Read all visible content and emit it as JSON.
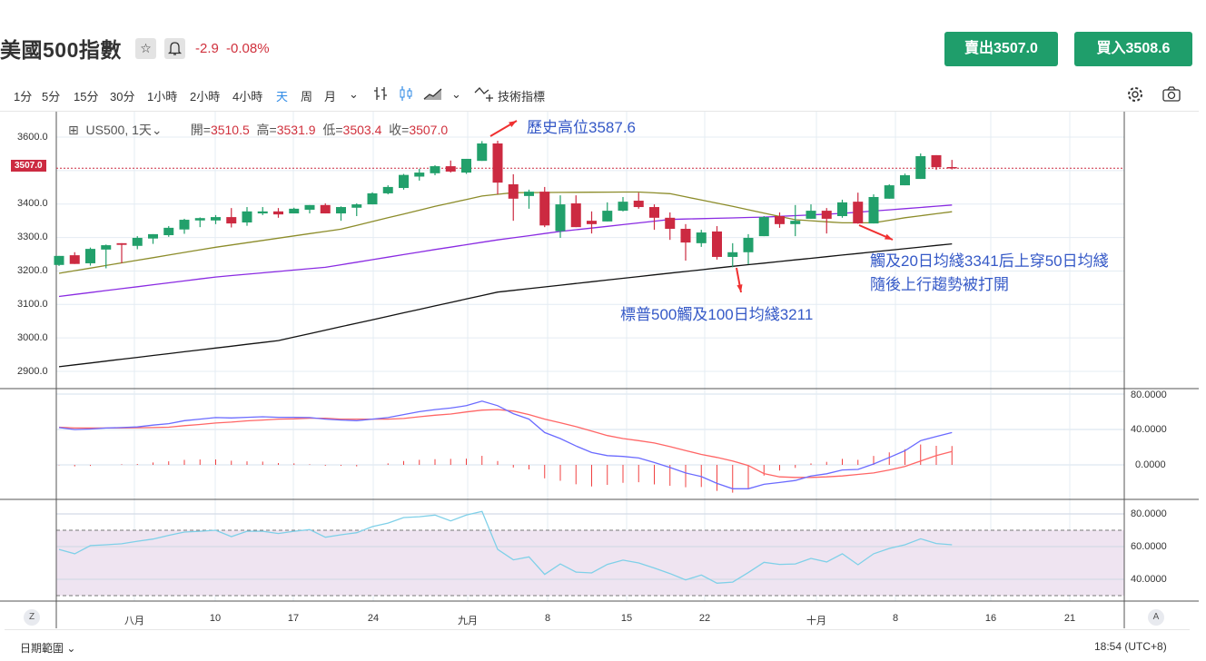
{
  "header": {
    "title": "美國500指數",
    "favorite_icon": "☆",
    "alert_icon": "🔔",
    "change": "-2.9",
    "change_pct": "-0.08%",
    "sell_label": "賣出3507.0",
    "buy_label": "買入3508.6",
    "sell_color": "#1f9e6b",
    "buy_color": "#1f9e6b"
  },
  "toolbar": {
    "intervals": [
      "1分",
      "5分",
      "15分",
      "30分",
      "1小時",
      "2小時",
      "4小時",
      "天",
      "周",
      "月"
    ],
    "active_interval": "天",
    "more": "⌄",
    "chart_type_more": "⌄",
    "indicators_label": "技術指標"
  },
  "legend": {
    "symbol": "US500, 1天",
    "open_label": "開=",
    "open": "3510.5",
    "high_label": "高=",
    "high": "3531.9",
    "low_label": "低=",
    "low": "3503.4",
    "close_label": "收=",
    "close": "3507.0"
  },
  "annotations": {
    "high": "歷史高位3587.6",
    "ma100": "標普500觸及100日均綫3211",
    "ma20_line1": "觸及20日均綫3341后上穿50日均綫",
    "ma20_line2": "隨後上行趨勢被打開"
  },
  "price_axis": {
    "labels": [
      "3600.0",
      "3500.0",
      "3400.0",
      "3300.0",
      "3200.0",
      "3100.0",
      "3000.0",
      "2900.0"
    ],
    "current": "3507.0"
  },
  "macd_axis": {
    "labels": [
      "80.0000",
      "40.0000",
      "0.0000"
    ]
  },
  "rsi_axis": {
    "labels": [
      "80.0000",
      "60.0000",
      "40.0000"
    ]
  },
  "time_axis": {
    "labels": [
      "八月",
      "10",
      "17",
      "24",
      "九月",
      "8",
      "15",
      "22",
      "十月",
      "8",
      "16",
      "21"
    ],
    "left_btn": "Z",
    "right_btn": "A"
  },
  "footer": {
    "range_label": "日期範圍 ⌄",
    "clock": "18:54 (UTC+8)"
  },
  "colors": {
    "up": "#22a06b",
    "down": "#cc2a41",
    "ma20": "#8c8c2a",
    "ma50": "#8a2be2",
    "ma100": "#111111",
    "dif": "#6b6bff",
    "dea": "#ff6666",
    "rsi": "#7fd0e8",
    "note": "#3559c7"
  },
  "chart_data": {
    "type": "candlestick",
    "symbol": "US500",
    "timeframe": "1天",
    "ylim": [
      2880,
      3640
    ],
    "ohlc": [
      [
        3218,
        3245,
        3215,
        3245
      ],
      [
        3247,
        3256,
        3221,
        3221
      ],
      [
        3223,
        3270,
        3216,
        3266
      ],
      [
        3264,
        3279,
        3208,
        3277
      ],
      [
        3283,
        3283,
        3223,
        3278
      ],
      [
        3275,
        3304,
        3265,
        3299
      ],
      [
        3297,
        3310,
        3281,
        3310
      ],
      [
        3307,
        3334,
        3302,
        3329
      ],
      [
        3324,
        3356,
        3311,
        3353
      ],
      [
        3351,
        3360,
        3331,
        3358
      ],
      [
        3351,
        3367,
        3340,
        3361
      ],
      [
        3361,
        3388,
        3330,
        3342
      ],
      [
        3345,
        3391,
        3335,
        3378
      ],
      [
        3372,
        3391,
        3367,
        3378
      ],
      [
        3378,
        3388,
        3359,
        3369
      ],
      [
        3372,
        3389,
        3372,
        3386
      ],
      [
        3383,
        3397,
        3372,
        3397
      ],
      [
        3397,
        3402,
        3372,
        3372
      ],
      [
        3372,
        3393,
        3350,
        3391
      ],
      [
        3389,
        3402,
        3364,
        3399
      ],
      [
        3399,
        3435,
        3399,
        3432
      ],
      [
        3432,
        3456,
        3429,
        3451
      ],
      [
        3448,
        3490,
        3443,
        3487
      ],
      [
        3482,
        3505,
        3470,
        3494
      ],
      [
        3492,
        3516,
        3486,
        3513
      ],
      [
        3513,
        3530,
        3494,
        3497
      ],
      [
        3494,
        3535,
        3490,
        3535
      ],
      [
        3529,
        3588,
        3529,
        3581
      ],
      [
        3581,
        3589,
        3429,
        3464
      ],
      [
        3459,
        3489,
        3350,
        3416
      ],
      [
        3424,
        3443,
        3386,
        3437
      ],
      [
        3437,
        3451,
        3331,
        3336
      ],
      [
        3319,
        3426,
        3299,
        3399
      ],
      [
        3402,
        3426,
        3331,
        3331
      ],
      [
        3350,
        3378,
        3312,
        3340
      ],
      [
        3348,
        3405,
        3348,
        3380
      ],
      [
        3380,
        3421,
        3378,
        3407
      ],
      [
        3410,
        3434,
        3386,
        3391
      ],
      [
        3391,
        3399,
        3323,
        3359
      ],
      [
        3359,
        3375,
        3293,
        3326
      ],
      [
        3326,
        3340,
        3231,
        3285
      ],
      [
        3283,
        3323,
        3272,
        3315
      ],
      [
        3318,
        3334,
        3234,
        3242
      ],
      [
        3242,
        3283,
        3211,
        3256
      ],
      [
        3256,
        3310,
        3220,
        3299
      ],
      [
        3304,
        3364,
        3304,
        3361
      ],
      [
        3364,
        3375,
        3329,
        3340
      ],
      [
        3340,
        3397,
        3304,
        3350
      ],
      [
        3356,
        3399,
        3356,
        3380
      ],
      [
        3380,
        3388,
        3312,
        3356
      ],
      [
        3364,
        3413,
        3359,
        3405
      ],
      [
        3407,
        3434,
        3341,
        3342
      ],
      [
        3342,
        3429,
        3342,
        3421
      ],
      [
        3416,
        3459,
        3416,
        3456
      ],
      [
        3456,
        3491,
        3456,
        3486
      ],
      [
        3475,
        3551,
        3475,
        3543
      ],
      [
        3546,
        3546,
        3502,
        3510
      ],
      [
        3510.5,
        3531.9,
        3503.4,
        3507.0
      ]
    ],
    "ma20_keypoints": [
      [
        0,
        3193
      ],
      [
        10,
        3271
      ],
      [
        18,
        3325
      ],
      [
        24,
        3393
      ],
      [
        27,
        3424
      ],
      [
        29,
        3434
      ],
      [
        37,
        3436
      ],
      [
        39,
        3431
      ],
      [
        43,
        3393
      ],
      [
        47,
        3353
      ],
      [
        50,
        3344
      ],
      [
        52,
        3344
      ],
      [
        54,
        3359
      ],
      [
        57,
        3377
      ]
    ],
    "ma50_keypoints": [
      [
        0,
        3124
      ],
      [
        10,
        3182
      ],
      [
        17,
        3211
      ],
      [
        24,
        3264
      ],
      [
        28,
        3293
      ],
      [
        32,
        3318
      ],
      [
        39,
        3354
      ],
      [
        45,
        3361
      ],
      [
        50,
        3372
      ],
      [
        57,
        3397
      ]
    ],
    "ma100_keypoints": [
      [
        0,
        2914
      ],
      [
        14,
        2992
      ],
      [
        25,
        3106
      ],
      [
        28,
        3137
      ],
      [
        43,
        3214
      ],
      [
        57,
        3281
      ]
    ],
    "macd_dif": [
      42.2,
      39.9,
      40.5,
      41.6,
      42.2,
      42.9,
      44.9,
      46.6,
      50,
      51.7,
      53.4,
      53,
      53.7,
      54.4,
      53.7,
      53.7,
      53.4,
      51.7,
      50.7,
      50,
      51.7,
      53.4,
      56.8,
      60.1,
      62.5,
      64.2,
      66.9,
      72,
      66.9,
      57.8,
      51.7,
      36.5,
      29.7,
      21.3,
      13.9,
      10.5,
      9.5,
      7.8,
      2.7,
      -3,
      -9.1,
      -13.2,
      -20.9,
      -27,
      -27,
      -21.9,
      -19.9,
      -17.6,
      -12.5,
      -10.1,
      -5.7,
      -5.1,
      1,
      8.4,
      16,
      27.4,
      32.1,
      36.5
    ],
    "macd_dea": [
      42.6,
      41.6,
      41.6,
      41.6,
      41.6,
      41.9,
      42.2,
      42.6,
      44.3,
      45.6,
      47.3,
      48.3,
      49.7,
      50.7,
      51.7,
      52,
      52.7,
      52.7,
      51.7,
      51.7,
      51.7,
      51.7,
      52.4,
      54.4,
      56.1,
      57.4,
      59.8,
      61.8,
      62.5,
      60.8,
      56.8,
      51.7,
      47.6,
      43.2,
      38.2,
      33.1,
      29.7,
      27.4,
      24.7,
      20.6,
      16.2,
      11.8,
      8.4,
      4.4,
      -0.7,
      -9.8,
      -13.5,
      -14.2,
      -14.2,
      -13.5,
      -12.5,
      -10.8,
      -9.1,
      -5.7,
      -1.7,
      4.4,
      10.5,
      15.2
    ],
    "rsi": [
      58.3,
      55.6,
      60.6,
      61.1,
      61.7,
      63.3,
      64.6,
      66.9,
      68.9,
      69.4,
      70,
      66.1,
      69.4,
      69.4,
      68,
      69.4,
      70.4,
      65.7,
      67.2,
      68.5,
      72.2,
      74.4,
      77.8,
      78.3,
      79.3,
      75.7,
      79.3,
      81.5,
      58.3,
      51.9,
      53.7,
      43,
      49.4,
      44.4,
      43.9,
      49.1,
      51.7,
      50,
      46.9,
      43.5,
      39.6,
      42.6,
      37.6,
      38.3,
      44.1,
      50.4,
      49.1,
      49.4,
      52.8,
      50.6,
      55.6,
      48.9,
      55.6,
      58.9,
      61.1,
      64.8,
      61.9,
      61.1
    ],
    "rsi_bands": [
      30,
      70
    ],
    "current_price": 3507.0
  }
}
